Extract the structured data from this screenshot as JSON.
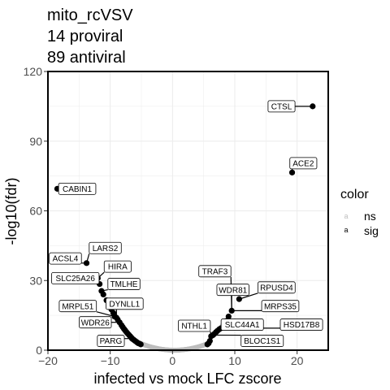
{
  "chart_data": {
    "type": "scatter",
    "title_lines": [
      "mito_rcVSV",
      "14 proviral",
      "89 antiviral"
    ],
    "xlabel": "infected vs mock LFC zscore",
    "ylabel": "-log10(fdr)",
    "xlim": [
      -20,
      25
    ],
    "ylim": [
      0,
      120
    ],
    "x_ticks": [
      -20,
      -10,
      0,
      10,
      20
    ],
    "x_tick_labels": [
      "−20",
      "−10",
      "0",
      "10",
      "20"
    ],
    "y_ticks": [
      0,
      30,
      60,
      90,
      120
    ],
    "y_tick_labels": [
      "0",
      "30",
      "60",
      "90",
      "120"
    ],
    "grid": true,
    "legend": {
      "title": "color",
      "position": "right",
      "items": [
        {
          "key": "a",
          "label": "ns",
          "color": "#bdbdbd"
        },
        {
          "key": "a",
          "label": "sig",
          "color": "#000000"
        }
      ]
    },
    "colors": {
      "ns": "#bdbdbd",
      "sig": "#000000"
    },
    "labeled_points": [
      {
        "gene": "CTSL",
        "x": 22.5,
        "y": 105,
        "label_x": 17.5,
        "label_y": 105
      },
      {
        "gene": "ACE2",
        "x": 19.2,
        "y": 76.5,
        "label_x": 21.0,
        "label_y": 80.5
      },
      {
        "gene": "CABIN1",
        "x": -18.5,
        "y": 69.5,
        "label_x": -15.3,
        "label_y": 69.5
      },
      {
        "gene": "LARS2",
        "x": -13.8,
        "y": 37.5,
        "label_x": -10.8,
        "label_y": 44.0
      },
      {
        "gene": "ACSL4",
        "x": -13.8,
        "y": 37.5,
        "label_x": -17.2,
        "label_y": 39.5
      },
      {
        "gene": "HIRA",
        "x": -12.0,
        "y": 31.0,
        "label_x": -8.8,
        "label_y": 36.0
      },
      {
        "gene": "SLC25A26",
        "x": -11.7,
        "y": 28.5,
        "label_x": -15.6,
        "label_y": 31.0
      },
      {
        "gene": "TMLHE",
        "x": -11.4,
        "y": 25.5,
        "label_x": -7.8,
        "label_y": 28.5
      },
      {
        "gene": "MRPL51",
        "x": -9.3,
        "y": 14.5,
        "label_x": -15.2,
        "label_y": 19.0
      },
      {
        "gene": "DYNLL1",
        "x": -9.0,
        "y": 14.0,
        "label_x": -7.7,
        "label_y": 20.0
      },
      {
        "gene": "WDR26",
        "x": -8.5,
        "y": 12.0,
        "label_x": -12.4,
        "label_y": 12.0
      },
      {
        "gene": "PARG",
        "x": -6.5,
        "y": 5.0,
        "label_x": -9.9,
        "label_y": 4.0
      },
      {
        "gene": "TRAF3",
        "x": 9.5,
        "y": 17.0,
        "label_x": 6.8,
        "label_y": 34.0
      },
      {
        "gene": "WDR81",
        "x": 9.5,
        "y": 17.0,
        "label_x": 9.7,
        "label_y": 26.0
      },
      {
        "gene": "RPUSD4",
        "x": 10.7,
        "y": 22.0,
        "label_x": 16.7,
        "label_y": 27.0
      },
      {
        "gene": "MRPS35",
        "x": 9.5,
        "y": 17.0,
        "label_x": 17.3,
        "label_y": 19.0
      },
      {
        "gene": "NTHL1",
        "x": 6.2,
        "y": 6.0,
        "label_x": 3.5,
        "label_y": 10.5
      },
      {
        "gene": "SLC44A1",
        "x": 7.5,
        "y": 9.0,
        "label_x": 11.2,
        "label_y": 11.0
      },
      {
        "gene": "HSD17B8",
        "x": 7.8,
        "y": 9.5,
        "label_x": 20.7,
        "label_y": 11.0
      },
      {
        "gene": "BLOC1S1",
        "x": 6.5,
        "y": 6.5,
        "label_x": 14.4,
        "label_y": 4.0
      }
    ],
    "sig_points": [
      [
        -18.5,
        69.5
      ],
      [
        -13.8,
        37.5
      ],
      [
        -12.0,
        31.0
      ],
      [
        -11.7,
        28.5
      ],
      [
        -11.4,
        25.5
      ],
      [
        -11.1,
        24.0
      ],
      [
        -10.6,
        21.5
      ],
      [
        -10.2,
        19.5
      ],
      [
        -9.8,
        17.5
      ],
      [
        -9.5,
        16.0
      ],
      [
        -9.3,
        14.5
      ],
      [
        -9.0,
        14.0
      ],
      [
        -8.8,
        13.2
      ],
      [
        -8.5,
        12.0
      ],
      [
        -8.2,
        10.8
      ],
      [
        -8.0,
        10.0
      ],
      [
        -7.8,
        9.2
      ],
      [
        -7.6,
        8.5
      ],
      [
        -7.4,
        7.8
      ],
      [
        -7.2,
        7.2
      ],
      [
        -7.0,
        6.6
      ],
      [
        -6.8,
        6.0
      ],
      [
        -6.6,
        5.4
      ],
      [
        -6.5,
        5.0
      ],
      [
        -6.3,
        4.6
      ],
      [
        -6.1,
        4.2
      ],
      [
        -5.9,
        3.8
      ],
      [
        -5.7,
        3.4
      ],
      [
        -5.5,
        3.0
      ],
      [
        -5.3,
        2.8
      ],
      [
        -5.1,
        2.5
      ],
      [
        5.6,
        2.5
      ],
      [
        5.8,
        3.0
      ],
      [
        6.0,
        4.0
      ],
      [
        6.2,
        6.0
      ],
      [
        6.5,
        6.5
      ],
      [
        6.7,
        7.0
      ],
      [
        7.0,
        7.8
      ],
      [
        7.2,
        8.3
      ],
      [
        7.5,
        9.0
      ],
      [
        7.8,
        9.5
      ],
      [
        8.2,
        11.0
      ],
      [
        8.6,
        12.5
      ],
      [
        9.0,
        14.5
      ],
      [
        9.5,
        17.0
      ],
      [
        10.7,
        22.0
      ],
      [
        19.2,
        76.5
      ],
      [
        22.5,
        105
      ]
    ],
    "ns_curve": {
      "x_min": -5.2,
      "x_max": 5.8,
      "peak_y": 3.0
    }
  }
}
